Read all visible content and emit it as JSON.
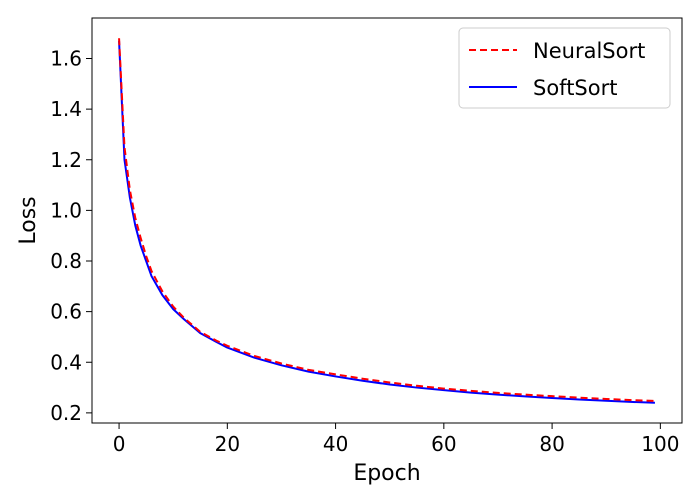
{
  "chart_data": {
    "type": "line",
    "title": "",
    "xlabel": "Epoch",
    "ylabel": "Loss",
    "xlim": [
      -5,
      104
    ],
    "ylim": [
      0.16,
      1.76
    ],
    "xticks": [
      0,
      20,
      40,
      60,
      80,
      100
    ],
    "xtick_labels": [
      "0",
      "20",
      "40",
      "60",
      "80",
      "100"
    ],
    "yticks": [
      0.2,
      0.4,
      0.6,
      0.8,
      1.0,
      1.2,
      1.4,
      1.6
    ],
    "ytick_labels": [
      "0.2",
      "0.4",
      "0.6",
      "0.8",
      "1.0",
      "1.2",
      "1.4",
      "1.6"
    ],
    "grid": false,
    "legend_position": "top-right",
    "x": [
      0,
      1,
      2,
      3,
      4,
      5,
      6,
      8,
      10,
      12,
      15,
      18,
      20,
      25,
      30,
      35,
      40,
      45,
      50,
      55,
      60,
      65,
      70,
      75,
      80,
      85,
      90,
      95,
      99
    ],
    "series": [
      {
        "name": "NeuralSort",
        "color": "#ff0000",
        "dash": "dashed",
        "values": [
          1.68,
          1.25,
          1.08,
          0.97,
          0.89,
          0.82,
          0.76,
          0.68,
          0.62,
          0.575,
          0.52,
          0.485,
          0.465,
          0.425,
          0.395,
          0.37,
          0.352,
          0.335,
          0.32,
          0.307,
          0.296,
          0.287,
          0.279,
          0.272,
          0.266,
          0.26,
          0.255,
          0.25,
          0.247
        ]
      },
      {
        "name": "SoftSort",
        "color": "#0000ff",
        "dash": "solid",
        "values": [
          1.67,
          1.2,
          1.05,
          0.94,
          0.86,
          0.8,
          0.74,
          0.665,
          0.61,
          0.57,
          0.515,
          0.48,
          0.458,
          0.418,
          0.388,
          0.363,
          0.344,
          0.327,
          0.312,
          0.3,
          0.29,
          0.28,
          0.272,
          0.265,
          0.259,
          0.253,
          0.248,
          0.243,
          0.24
        ]
      }
    ]
  }
}
